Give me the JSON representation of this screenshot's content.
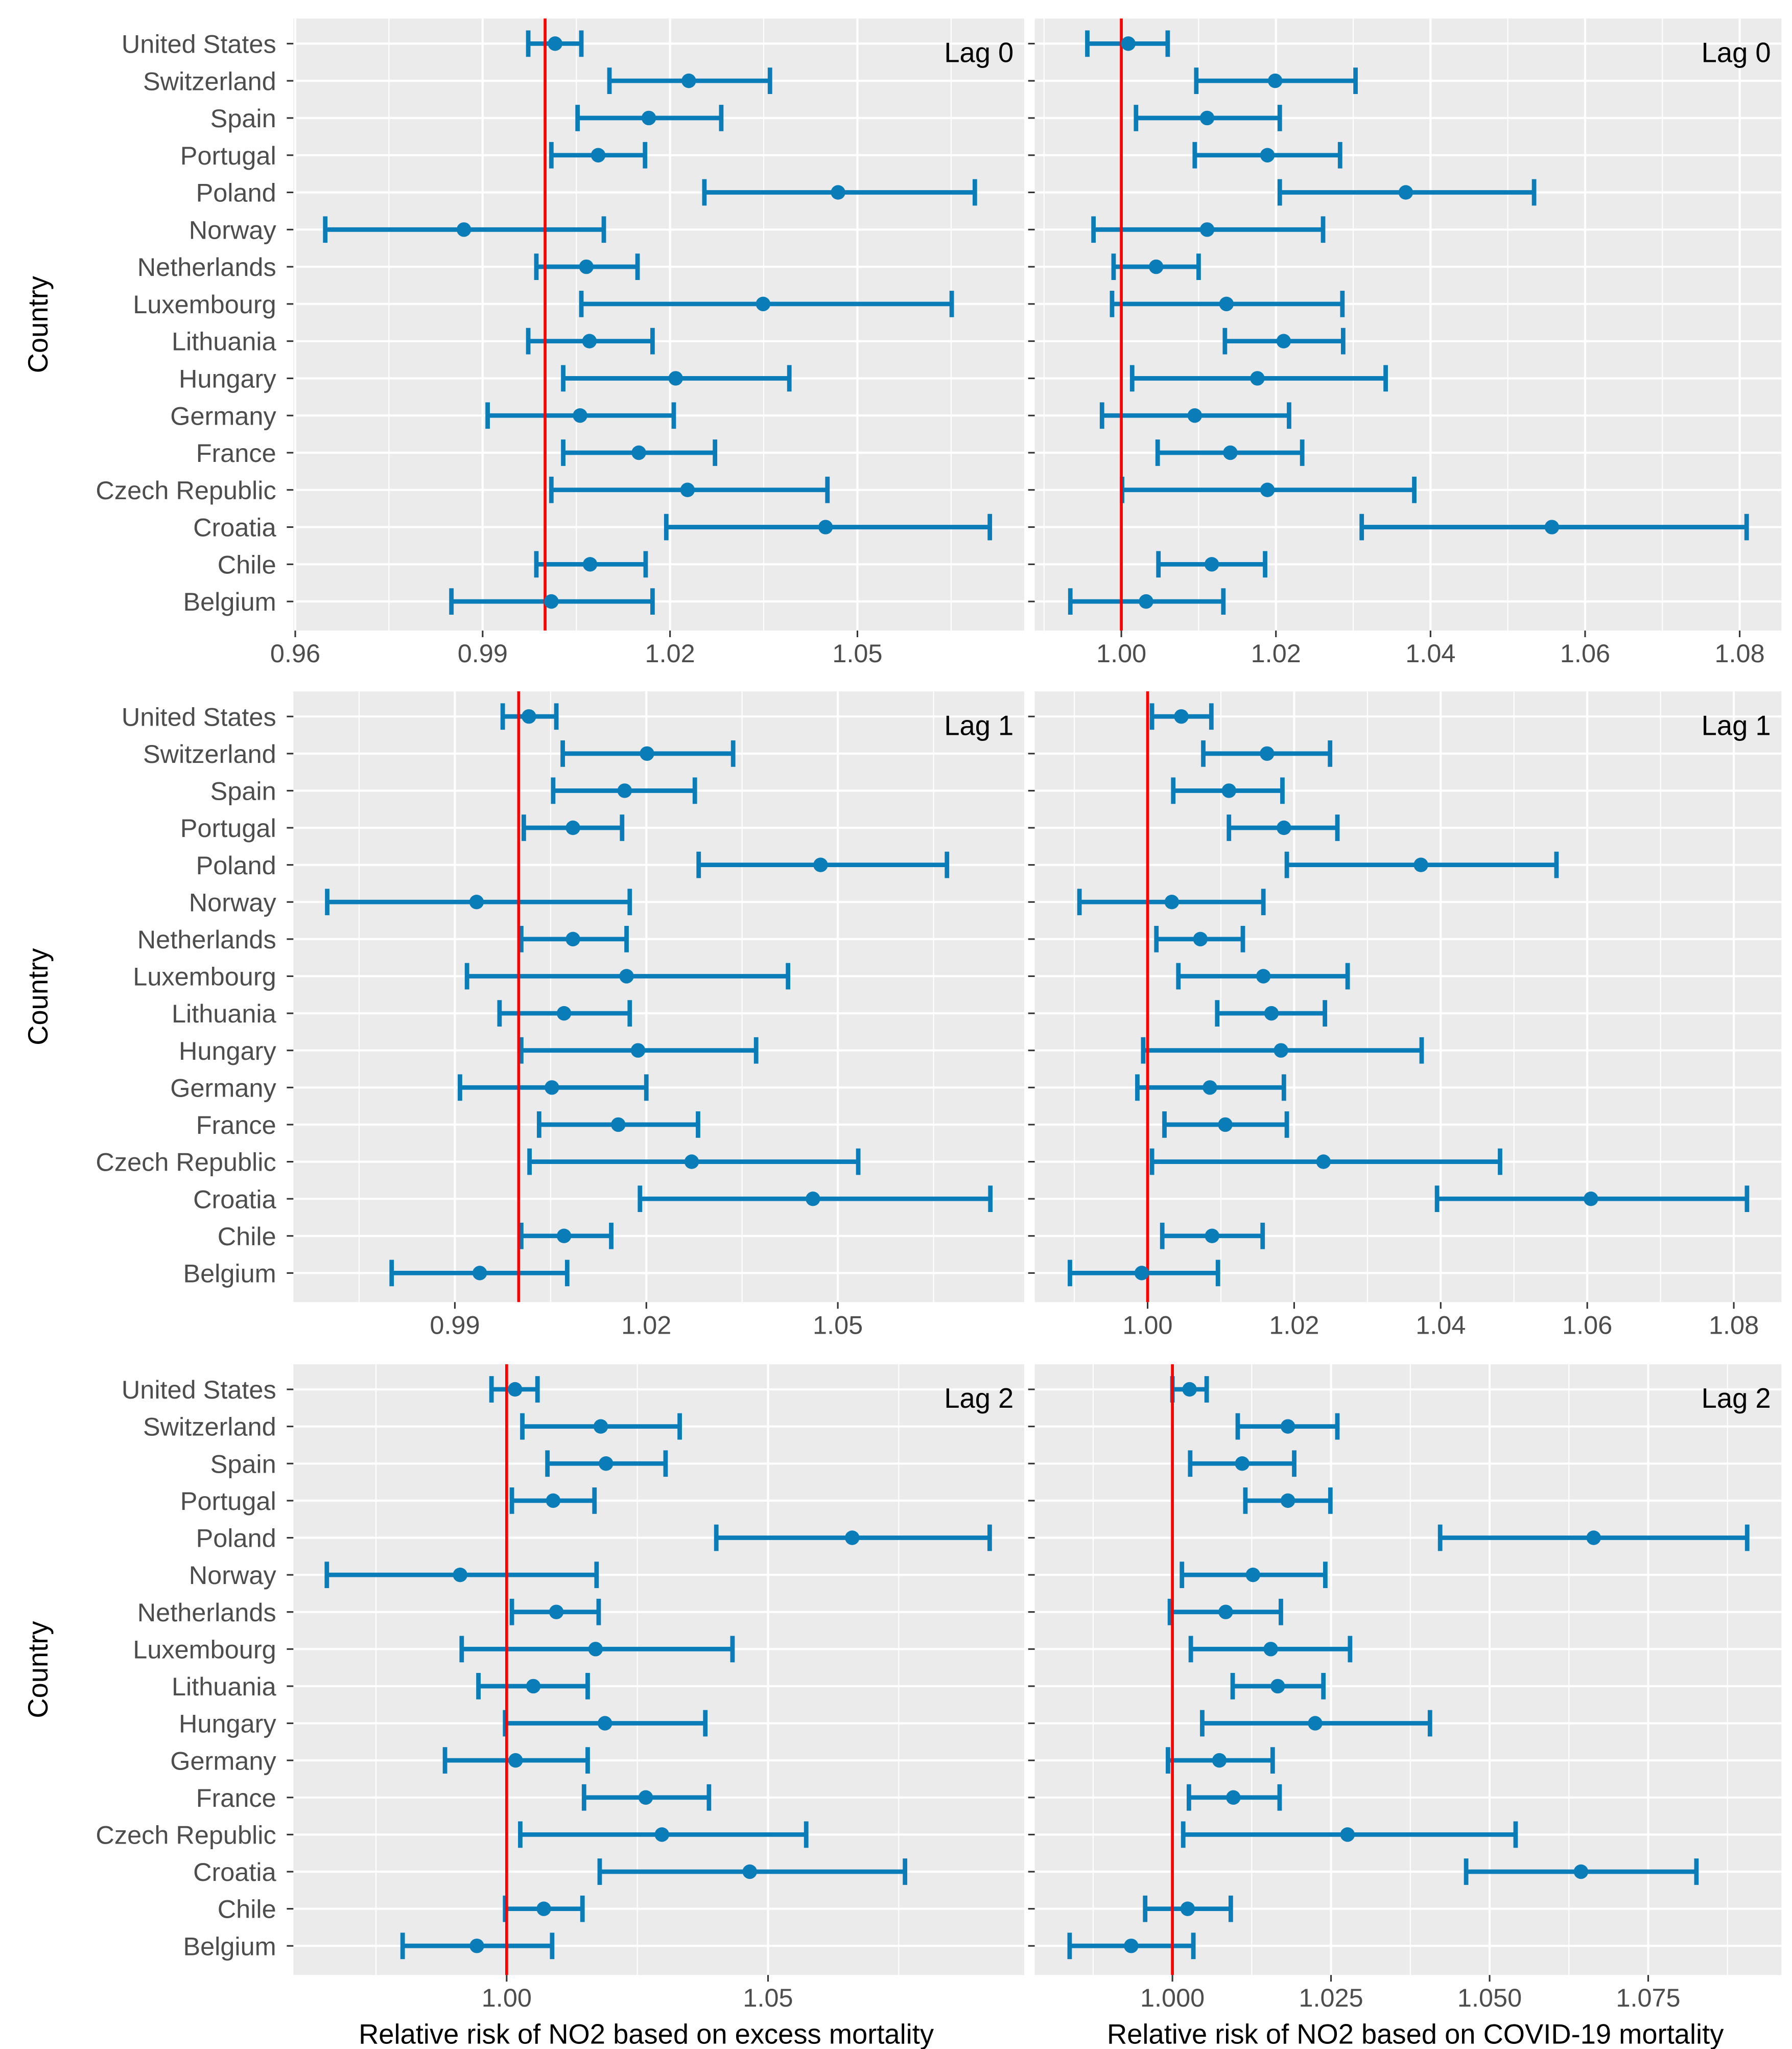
{
  "figure": {
    "y_axis_title": "Country",
    "x_axis_titles": [
      "Relative risk of NO2 based on excess mortality",
      "Relative risk of NO2 based on COVID-19 mortality"
    ],
    "countries": [
      "United States",
      "Switzerland",
      "Spain",
      "Portugal",
      "Poland",
      "Norway",
      "Netherlands",
      "Luxembourg",
      "Lithuania",
      "Hungary",
      "Germany",
      "France",
      "Czech Republic",
      "Croatia",
      "Chile",
      "Belgium"
    ],
    "colors": {
      "panel_bg": "#EBEBEB",
      "grid": "#FFFFFF",
      "point": "#0A7DB8",
      "reference_line": "#FF0000",
      "text": "#4D4D4D"
    }
  },
  "chart_data": [
    {
      "type": "errorbar",
      "panel": "Lag 0 - excess mortality",
      "label": "Lag 0",
      "xlabel": "",
      "ylabel": "Country",
      "xlim": [
        0.9597,
        1.0767
      ],
      "xticks": [
        0.96,
        0.99,
        1.02,
        1.05
      ],
      "xtick_labels": [
        "0.96",
        "0.99",
        "1.02",
        "1.05"
      ],
      "reference_line": 1.0,
      "grid": true,
      "categories": [
        "United States",
        "Switzerland",
        "Spain",
        "Portugal",
        "Poland",
        "Norway",
        "Netherlands",
        "Luxembourg",
        "Lithuania",
        "Hungary",
        "Germany",
        "France",
        "Czech Republic",
        "Croatia",
        "Chile",
        "Belgium"
      ],
      "estimate": [
        1.0016,
        1.023,
        1.0166,
        1.0085,
        1.0469,
        0.987,
        1.0066,
        1.0349,
        1.0071,
        1.0209,
        1.0056,
        1.015,
        1.0228,
        1.0449,
        1.0072,
        1.001
      ],
      "lower": [
        0.9973,
        1.0103,
        1.0052,
        1.001,
        1.0255,
        0.9648,
        0.9986,
        1.0058,
        0.9973,
        1.0029,
        0.9908,
        1.0029,
        1.001,
        1.0194,
        0.9986,
        0.985
      ],
      "upper": [
        1.0058,
        1.036,
        1.0282,
        1.016,
        1.0688,
        1.0094,
        1.0148,
        1.0651,
        1.0172,
        1.0391,
        1.0206,
        1.0272,
        1.0452,
        1.0712,
        1.0161,
        1.0172
      ]
    },
    {
      "type": "errorbar",
      "panel": "Lag 0 - COVID-19 mortality",
      "label": "Lag 0",
      "xlabel": "",
      "ylabel": "",
      "xlim": [
        0.9888,
        1.0854
      ],
      "xticks": [
        1.0,
        1.02,
        1.04,
        1.06,
        1.08
      ],
      "xtick_labels": [
        "1.00",
        "1.02",
        "1.04",
        "1.06",
        "1.08"
      ],
      "reference_line": 1.0,
      "grid": true,
      "categories": [
        "United States",
        "Switzerland",
        "Spain",
        "Portugal",
        "Poland",
        "Norway",
        "Netherlands",
        "Luxembourg",
        "Lithuania",
        "Hungary",
        "Germany",
        "France",
        "Czech Republic",
        "Croatia",
        "Chile",
        "Belgium"
      ],
      "estimate": [
        1.0009,
        1.0199,
        1.0111,
        1.0189,
        1.0368,
        1.0111,
        1.0045,
        1.0136,
        1.021,
        1.0176,
        1.0095,
        1.0141,
        1.0189,
        1.0557,
        1.0117,
        1.0032
      ],
      "lower": [
        0.9956,
        1.0097,
        1.0019,
        1.0095,
        1.0205,
        0.9964,
        0.999,
        0.9988,
        1.0134,
        1.0014,
        0.9975,
        1.0047,
        1.0001,
        1.0311,
        1.0048,
        0.9934
      ],
      "upper": [
        1.006,
        1.0303,
        1.0205,
        1.0283,
        1.0534,
        1.0261,
        1.01,
        1.0286,
        1.0287,
        1.0342,
        1.0217,
        1.0234,
        1.0379,
        1.0809,
        1.0186,
        1.0132
      ]
    },
    {
      "type": "errorbar",
      "panel": "Lag 1 - excess mortality",
      "label": "Lag 1",
      "xlabel": "",
      "ylabel": "Country",
      "xlim": [
        0.9647,
        1.0792
      ],
      "xticks": [
        0.99,
        1.02,
        1.05
      ],
      "xtick_labels": [
        "0.99",
        "1.02",
        "1.05"
      ],
      "reference_line": 1.0,
      "grid": true,
      "categories": [
        "United States",
        "Switzerland",
        "Spain",
        "Portugal",
        "Poland",
        "Norway",
        "Netherlands",
        "Luxembourg",
        "Lithuania",
        "Hungary",
        "Germany",
        "France",
        "Czech Republic",
        "Croatia",
        "Chile",
        "Belgium"
      ],
      "estimate": [
        1.0016,
        1.0201,
        1.0166,
        1.0085,
        1.0473,
        0.9934,
        1.0085,
        1.0169,
        1.0071,
        1.0187,
        1.0052,
        1.0156,
        1.0271,
        1.0461,
        1.0071,
        0.9939
      ],
      "lower": [
        0.9975,
        1.0069,
        1.0054,
        1.0008,
        1.0282,
        0.97,
        1.0004,
        0.9919,
        0.997,
        1.0004,
        0.9908,
        1.0032,
        1.0017,
        1.019,
        1.0004,
        0.9801
      ],
      "upper": [
        1.0059,
        1.0336,
        1.0276,
        1.0162,
        1.0671,
        1.0174,
        1.0169,
        1.0422,
        1.0174,
        1.0372,
        1.02,
        1.0281,
        1.0532,
        1.0739,
        1.0145,
        1.0076
      ]
    },
    {
      "type": "errorbar",
      "panel": "Lag 1 - COVID-19 mortality",
      "label": "Lag 1",
      "xlabel": "",
      "ylabel": "",
      "xlim": [
        0.9846,
        1.0865
      ],
      "xticks": [
        1.0,
        1.02,
        1.04,
        1.06,
        1.08
      ],
      "xtick_labels": [
        "1.00",
        "1.02",
        "1.04",
        "1.06",
        "1.08"
      ],
      "reference_line": 1.0,
      "grid": true,
      "categories": [
        "United States",
        "Switzerland",
        "Spain",
        "Portugal",
        "Poland",
        "Norway",
        "Netherlands",
        "Luxembourg",
        "Lithuania",
        "Hungary",
        "Germany",
        "France",
        "Czech Republic",
        "Croatia",
        "Chile",
        "Belgium"
      ],
      "estimate": [
        1.0046,
        1.0163,
        1.0111,
        1.0186,
        1.0373,
        1.0033,
        1.0072,
        1.0158,
        1.0169,
        1.0182,
        1.0085,
        1.0106,
        1.024,
        1.0605,
        1.0088,
        0.9992
      ],
      "lower": [
        1.0006,
        1.0076,
        1.0035,
        1.0111,
        1.019,
        0.9907,
        1.0012,
        1.0042,
        1.0095,
        0.9994,
        0.9986,
        1.0023,
        1.0006,
        1.0395,
        1.002,
        0.9894
      ],
      "upper": [
        1.0087,
        1.0249,
        1.0184,
        1.0259,
        1.0558,
        1.0158,
        1.013,
        1.0273,
        1.0242,
        1.0374,
        1.0186,
        1.019,
        1.0481,
        1.0818,
        1.0157,
        1.0096
      ]
    },
    {
      "type": "errorbar",
      "panel": "Lag 2 - excess mortality",
      "label": "Lag 2",
      "xlabel": "Relative risk of NO2 based on excess mortality",
      "ylabel": "Country",
      "xlim": [
        0.9592,
        1.099
      ],
      "xticks": [
        1.0,
        1.05
      ],
      "xtick_labels": [
        "1.00",
        "1.05"
      ],
      "reference_line": 1.0,
      "grid": true,
      "categories": [
        "United States",
        "Switzerland",
        "Spain",
        "Portugal",
        "Poland",
        "Norway",
        "Netherlands",
        "Luxembourg",
        "Lithuania",
        "Hungary",
        "Germany",
        "France",
        "Czech Republic",
        "Croatia",
        "Chile",
        "Belgium"
      ],
      "estimate": [
        1.0016,
        1.018,
        1.019,
        1.0089,
        1.0661,
        0.9911,
        1.0095,
        1.017,
        1.0051,
        1.0188,
        1.0017,
        1.0266,
        1.0297,
        1.0465,
        1.0071,
        0.9943
      ],
      "lower": [
        0.9971,
        1.003,
        1.0078,
        1.001,
        1.0401,
        0.9656,
        1.001,
        0.9914,
        0.9946,
        0.9997,
        0.9882,
        1.0148,
        1.0026,
        1.0178,
        0.9997,
        0.9801
      ],
      "upper": [
        1.0059,
        1.0331,
        1.0304,
        1.0168,
        1.0924,
        1.0172,
        1.0176,
        1.0432,
        1.0155,
        1.038,
        1.0155,
        1.0387,
        1.0573,
        1.0762,
        1.0145,
        1.0087
      ]
    },
    {
      "type": "errorbar",
      "panel": "Lag 2 - COVID-19 mortality",
      "label": "Lag 2",
      "xlabel": "Relative risk of NO2 based on COVID-19 mortality",
      "ylabel": "",
      "xlim": [
        0.9783,
        1.096
      ],
      "xticks": [
        1.0,
        1.025,
        1.05,
        1.075
      ],
      "xtick_labels": [
        "1.000",
        "1.025",
        "1.050",
        "1.075"
      ],
      "reference_line": 1.0,
      "grid": true,
      "categories": [
        "United States",
        "Switzerland",
        "Spain",
        "Portugal",
        "Poland",
        "Norway",
        "Netherlands",
        "Luxembourg",
        "Lithuania",
        "Hungary",
        "Germany",
        "France",
        "Czech Republic",
        "Croatia",
        "Chile",
        "Belgium"
      ],
      "estimate": [
        1.0027,
        1.0182,
        1.011,
        1.0182,
        1.0664,
        1.0127,
        1.0084,
        1.0155,
        1.0166,
        1.0225,
        1.0074,
        1.0096,
        1.0276,
        1.0644,
        1.0024,
        0.9935
      ],
      "lower": [
        1.0,
        1.0103,
        1.0028,
        1.0115,
        1.0422,
        1.0015,
        0.9996,
        1.0029,
        1.0095,
        1.0047,
        0.9993,
        1.0026,
        1.0017,
        1.0463,
        0.9957,
        0.9838
      ],
      "upper": [
        1.0054,
        1.026,
        1.0192,
        1.0249,
        1.0906,
        1.0241,
        1.0171,
        1.028,
        1.0238,
        1.0406,
        1.0158,
        1.0169,
        1.0541,
        1.0826,
        1.0092,
        1.0033
      ]
    }
  ]
}
